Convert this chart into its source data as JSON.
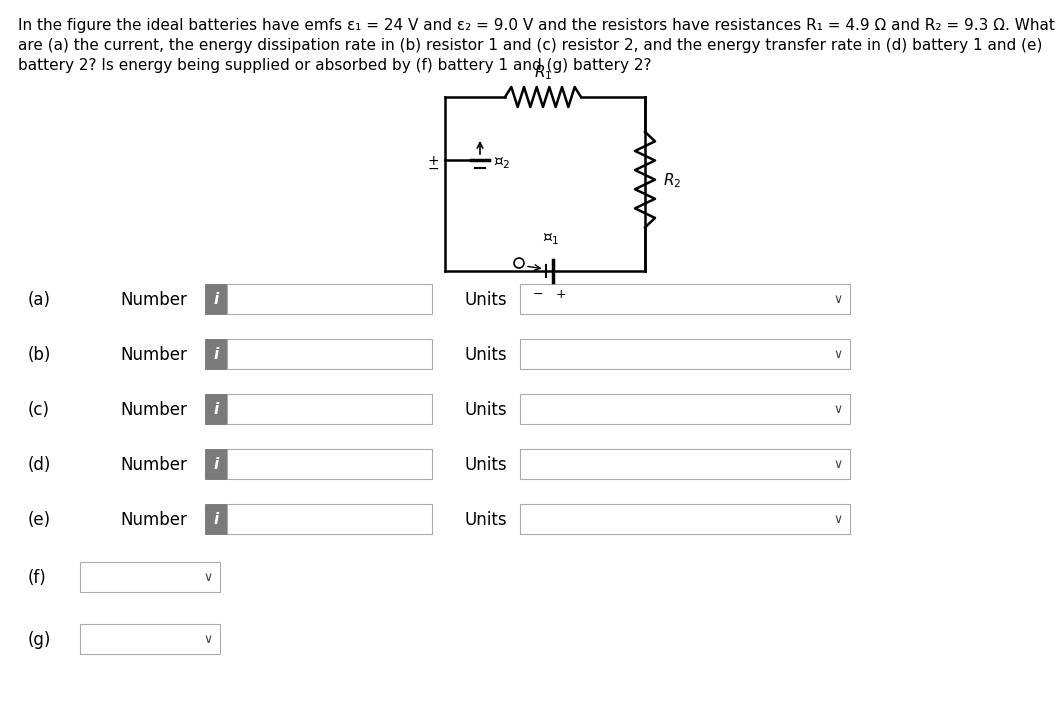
{
  "bg_color": "#ffffff",
  "text_color": "#000000",
  "title_lines": [
    "In the figure the ideal batteries have emfs ε₁ = 24 V and ε₂ = 9.0 V and the resistors have resistances R₁ = 4.9 Ω and R₂ = 9.3 Ω. What",
    "are (a) the current, the energy dissipation rate in (b) resistor 1 and (c) resistor 2, and the energy transfer rate in (d) battery 1 and (e)",
    "battery 2? Is energy being supplied or absorbed by (f) battery 1 and (g) battery 2?"
  ],
  "rows": [
    {
      "label": "(a)",
      "has_number": true
    },
    {
      "label": "(b)",
      "has_number": true
    },
    {
      "label": "(c)",
      "has_number": true
    },
    {
      "label": "(d)",
      "has_number": true
    },
    {
      "label": "(e)",
      "has_number": true
    },
    {
      "label": "(f)",
      "has_number": false
    },
    {
      "label": "(g)",
      "has_number": false
    }
  ],
  "i_button_color": "#7a7a7a",
  "box_border_color": "#aaaaaa",
  "chevron_color": "#444444"
}
